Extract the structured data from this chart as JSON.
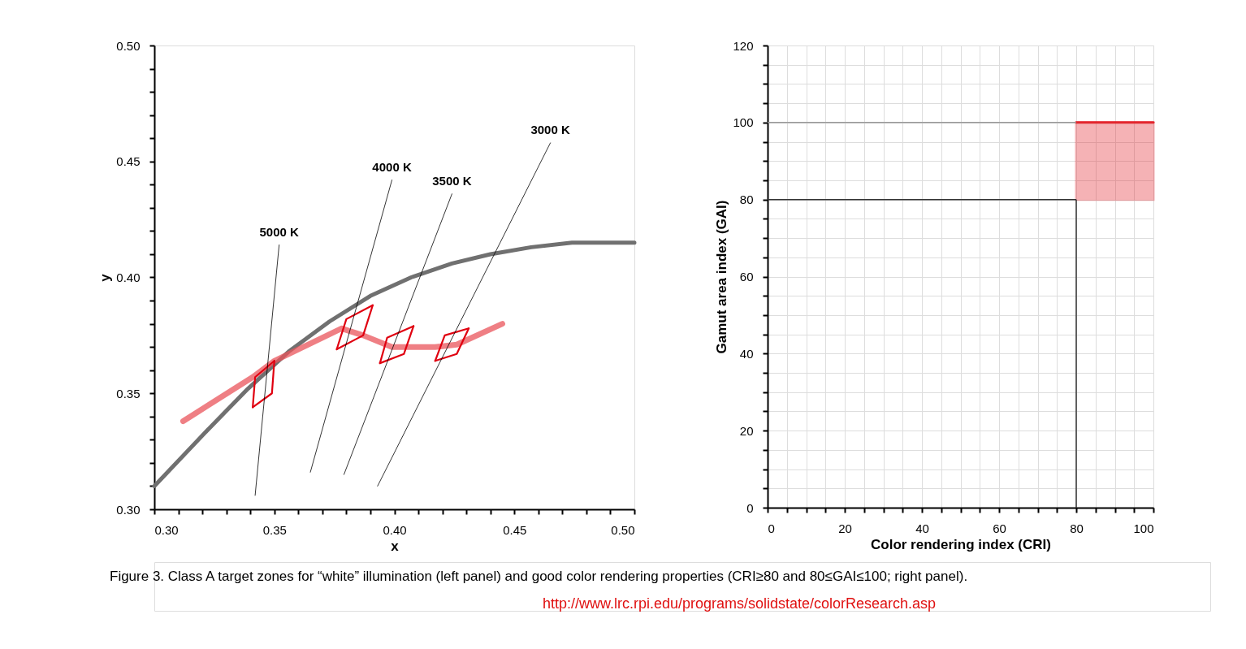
{
  "chart_data": [
    {
      "type": "line",
      "xlabel": "x",
      "ylabel": "y",
      "xlim": [
        0.3,
        0.5
      ],
      "ylim": [
        0.3,
        0.5
      ],
      "xticks": [
        {
          "value": 0.3,
          "label": "0.30"
        },
        {
          "value": 0.31,
          "label": null
        },
        {
          "value": 0.32,
          "label": null
        },
        {
          "value": 0.33,
          "label": null
        },
        {
          "value": 0.34,
          "label": null
        },
        {
          "value": 0.35,
          "label": "0.35"
        },
        {
          "value": 0.36,
          "label": null
        },
        {
          "value": 0.37,
          "label": null
        },
        {
          "value": 0.38,
          "label": null
        },
        {
          "value": 0.39,
          "label": null
        },
        {
          "value": 0.4,
          "label": "0.40"
        },
        {
          "value": 0.41,
          "label": null
        },
        {
          "value": 0.42,
          "label": null
        },
        {
          "value": 0.43,
          "label": null
        },
        {
          "value": 0.44,
          "label": null
        },
        {
          "value": 0.45,
          "label": "0.45"
        },
        {
          "value": 0.46,
          "label": null
        },
        {
          "value": 0.47,
          "label": null
        },
        {
          "value": 0.48,
          "label": null
        },
        {
          "value": 0.49,
          "label": null
        },
        {
          "value": 0.5,
          "label": "0.50"
        }
      ],
      "yticks": [
        {
          "value": 0.3,
          "label": "0.30"
        },
        {
          "value": 0.31,
          "label": null
        },
        {
          "value": 0.32,
          "label": null
        },
        {
          "value": 0.33,
          "label": null
        },
        {
          "value": 0.34,
          "label": null
        },
        {
          "value": 0.35,
          "label": "0.35"
        },
        {
          "value": 0.36,
          "label": null
        },
        {
          "value": 0.37,
          "label": null
        },
        {
          "value": 0.38,
          "label": null
        },
        {
          "value": 0.39,
          "label": null
        },
        {
          "value": 0.4,
          "label": "0.40"
        },
        {
          "value": 0.41,
          "label": null
        },
        {
          "value": 0.42,
          "label": null
        },
        {
          "value": 0.43,
          "label": null
        },
        {
          "value": 0.44,
          "label": null
        },
        {
          "value": 0.45,
          "label": "0.45"
        },
        {
          "value": 0.46,
          "label": null
        },
        {
          "value": 0.47,
          "label": null
        },
        {
          "value": 0.48,
          "label": null
        },
        {
          "value": 0.49,
          "label": null
        },
        {
          "value": 0.5,
          "label": "0.50"
        }
      ],
      "grid": false,
      "marker": "none",
      "line_style": "solid",
      "series": [
        {
          "color": "#707070",
          "x": [
            0.3,
            0.322,
            0.339,
            0.356,
            0.373,
            0.39,
            0.407,
            0.424,
            0.44,
            0.457,
            0.474,
            0.5
          ],
          "values": [
            0.31,
            0.334,
            0.352,
            0.368,
            0.381,
            0.392,
            0.4,
            0.406,
            0.41,
            0.413,
            0.415,
            0.415
          ]
        },
        {
          "color": "#e9545b",
          "x": [
            0.312,
            0.341,
            0.35,
            0.378,
            0.387,
            0.399,
            0.417,
            0.426,
            0.445
          ],
          "values": [
            0.338,
            0.357,
            0.364,
            0.378,
            0.375,
            0.37,
            0.37,
            0.371,
            0.38
          ]
        },
        {
          "color": "#e00010",
          "x": [
            0.341,
            0.342,
            0.35
          ],
          "values": [
            0.344,
            0.357,
            0.364
          ]
        },
        {
          "color": "#e00010",
          "x": [
            0.341,
            0.349,
            0.35
          ],
          "values": [
            0.344,
            0.35,
            0.364
          ]
        },
        {
          "color": "#e00010",
          "x": [
            0.376,
            0.38,
            0.391
          ],
          "values": [
            0.369,
            0.382,
            0.388
          ]
        },
        {
          "color": "#e00010",
          "x": [
            0.376,
            0.387,
            0.391
          ],
          "values": [
            0.369,
            0.375,
            0.388
          ]
        },
        {
          "color": "#e00010",
          "x": [
            0.394,
            0.397,
            0.408
          ],
          "values": [
            0.363,
            0.374,
            0.379
          ]
        },
        {
          "color": "#e00010",
          "x": [
            0.394,
            0.404,
            0.408
          ],
          "values": [
            0.363,
            0.367,
            0.379
          ]
        },
        {
          "color": "#e00010",
          "x": [
            0.417,
            0.421,
            0.431
          ],
          "values": [
            0.364,
            0.375,
            0.378
          ]
        },
        {
          "color": "#e00010",
          "x": [
            0.417,
            0.426,
            0.431
          ],
          "values": [
            0.364,
            0.367,
            0.378
          ]
        },
        {
          "color": "#000000",
          "x": [
            0.352,
            0.342
          ],
          "values": [
            0.414,
            0.306
          ]
        },
        {
          "color": "#000000",
          "x": [
            0.399,
            0.365
          ],
          "values": [
            0.442,
            0.316
          ]
        },
        {
          "color": "#000000",
          "x": [
            0.424,
            0.379
          ],
          "values": [
            0.436,
            0.315
          ]
        },
        {
          "color": "#000000",
          "x": [
            0.465,
            0.393
          ],
          "values": [
            0.458,
            0.31
          ]
        }
      ],
      "annotations": [
        {
          "text": "5000 K",
          "x": 0.352,
          "y": 0.414
        },
        {
          "text": "4000 K",
          "x": 0.399,
          "y": 0.442
        },
        {
          "text": "3500 K",
          "x": 0.424,
          "y": 0.436
        },
        {
          "text": "3000 K",
          "x": 0.465,
          "y": 0.458
        },
        "Figure 3. Class A target zones for “white” illumination (left panel) and good color rendering properties (CRI≥80 and 80≤GAI≤100; right panel).",
        "http://www.lrc.rpi.edu/programs/solidstate/colorResearch.asp"
      ]
    },
    {
      "type": "area",
      "xlabel": "Color rendering index (CRI)",
      "ylabel": "Gamut area index (GAI)",
      "xlim": [
        0,
        100
      ],
      "ylim": [
        0,
        120
      ],
      "xticks": [
        0,
        {
          "value": 5,
          "label": null
        },
        {
          "value": 10,
          "label": null
        },
        {
          "value": 15,
          "label": null
        },
        20,
        {
          "value": 25,
          "label": null
        },
        {
          "value": 30,
          "label": null
        },
        {
          "value": 35,
          "label": null
        },
        40,
        {
          "value": 45,
          "label": null
        },
        {
          "value": 50,
          "label": null
        },
        {
          "value": 55,
          "label": null
        },
        60,
        {
          "value": 65,
          "label": null
        },
        {
          "value": 70,
          "label": null
        },
        {
          "value": 75,
          "label": null
        },
        80,
        {
          "value": 85,
          "label": null
        },
        {
          "value": 90,
          "label": null
        },
        {
          "value": 95,
          "label": null
        },
        100
      ],
      "yticks": [
        0,
        {
          "value": 5,
          "label": null
        },
        {
          "value": 10,
          "label": null
        },
        {
          "value": 15,
          "label": null
        },
        20,
        {
          "value": 25,
          "label": null
        },
        {
          "value": 30,
          "label": null
        },
        {
          "value": 35,
          "label": null
        },
        40,
        {
          "value": 45,
          "label": null
        },
        {
          "value": 50,
          "label": null
        },
        {
          "value": 55,
          "label": null
        },
        60,
        {
          "value": 65,
          "label": null
        },
        {
          "value": 70,
          "label": null
        },
        {
          "value": 75,
          "label": null
        },
        80,
        {
          "value": 85,
          "label": null
        },
        {
          "value": 90,
          "label": null
        },
        {
          "value": 95,
          "label": null
        },
        100,
        {
          "value": 105,
          "label": null
        },
        {
          "value": 110,
          "label": null
        },
        {
          "value": 115,
          "label": null
        },
        120
      ],
      "grid": true,
      "series": [
        {
          "type": "line",
          "color": "#e3262e",
          "x": [
            80,
            100
          ],
          "values": [
            100,
            100
          ],
          "lower": [
            80,
            80
          ],
          "upper": [
            100,
            100
          ]
        }
      ],
      "ref_lines": [
        {
          "axis": "y",
          "value": 100,
          "color": "#999999"
        },
        {
          "axis": "y",
          "value": 80,
          "color": "#333333"
        },
        {
          "axis": "x",
          "value": 80,
          "color": "#333333"
        }
      ]
    }
  ]
}
